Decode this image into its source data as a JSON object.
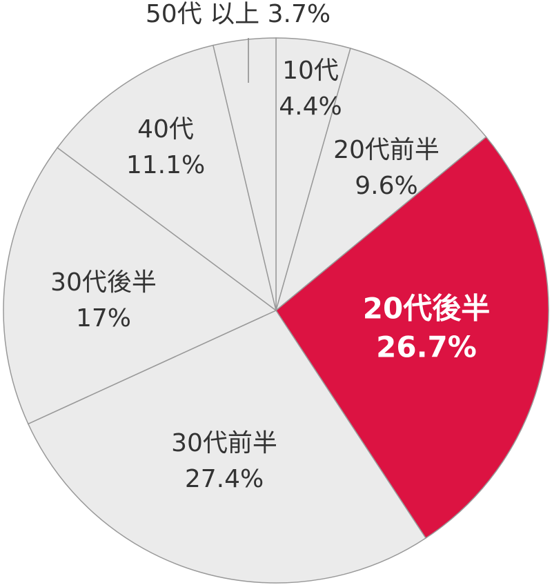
{
  "chart_data": {
    "type": "pie",
    "categories": [
      "10代",
      "20代前半",
      "20代後半",
      "30代前半",
      "30代後半",
      "40代",
      "50代 以上"
    ],
    "values": [
      4.4,
      9.6,
      26.7,
      27.4,
      17,
      11.1,
      3.7
    ],
    "value_labels": [
      "4.4%",
      "9.6%",
      "26.7%",
      "27.4%",
      "17%",
      "11.1%",
      "3.7%"
    ],
    "colors": [
      "#ebebeb",
      "#ebebeb",
      "#dc1342",
      "#ebebeb",
      "#ebebeb",
      "#ebebeb",
      "#ebebeb"
    ]
  }
}
